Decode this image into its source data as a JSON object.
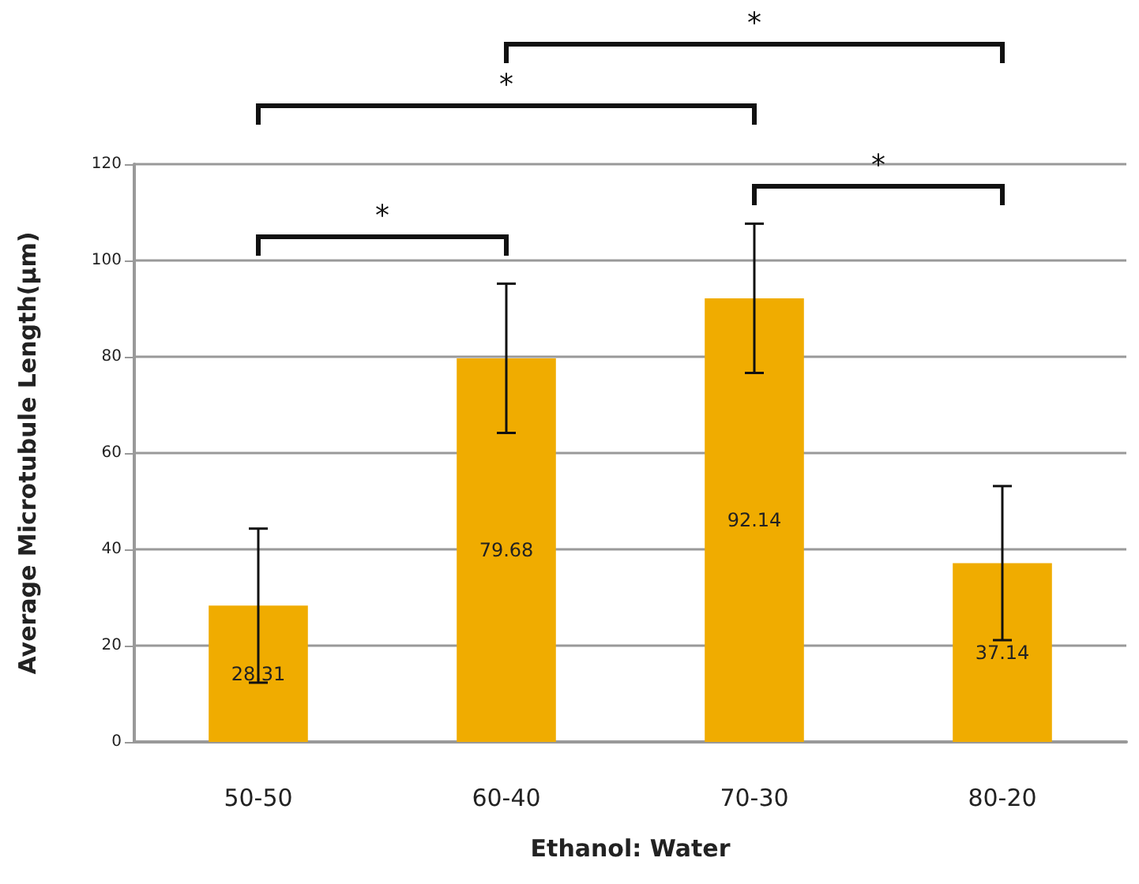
{
  "chart_data": {
    "type": "bar",
    "xlabel": "Ethanol: Water",
    "ylabel": "Average Microtubule Length(µm)",
    "categories": [
      "50-50",
      "60-40",
      "70-30",
      "80-20"
    ],
    "values": [
      28.31,
      79.68,
      92.14,
      37.14
    ],
    "errors": [
      16,
      15.5,
      15.5,
      16
    ],
    "color": "#f0ac00",
    "data_labels": true,
    "ylim": [
      0,
      120
    ],
    "yticks": [
      0,
      20,
      40,
      60,
      80,
      100,
      120
    ],
    "grid": "y",
    "annotations": [
      "*",
      "*",
      "*",
      "*"
    ]
  }
}
